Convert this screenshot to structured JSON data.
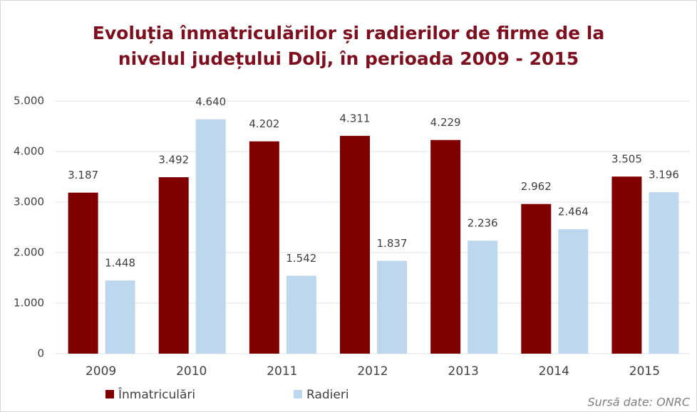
{
  "chart_data": {
    "type": "bar",
    "title": [
      "Evoluția înmatriculărilor și radierilor de firme de la",
      "nivelul județului Dolj, în perioada 2009 - 2015"
    ],
    "categories": [
      "2009",
      "2010",
      "2011",
      "2012",
      "2013",
      "2014",
      "2015"
    ],
    "series": [
      {
        "name": "Înmatriculări",
        "color": "#800000",
        "values": [
          3187,
          3492,
          4202,
          4311,
          4229,
          2962,
          3505
        ],
        "value_labels": [
          "3.187",
          "3.492",
          "4.202",
          "4.311",
          "4.229",
          "2.962",
          "3.505"
        ]
      },
      {
        "name": "Radieri",
        "color": "#bdd7ee",
        "values": [
          1448,
          4640,
          1542,
          1837,
          2236,
          2464,
          3196
        ],
        "value_labels": [
          "1.448",
          "4.640",
          "1.542",
          "1.837",
          "2.236",
          "2.464",
          "3.196"
        ]
      }
    ],
    "ylim": [
      0,
      5000
    ],
    "yticks": [
      0,
      {
        "value": 1000,
        "label": "1.000"
      },
      {
        "value": 2000,
        "label": "2.000"
      },
      {
        "value": 3000,
        "label": "3.000"
      },
      {
        "value": 4000,
        "label": "4.000"
      },
      {
        "value": 5000,
        "label": "5.000"
      }
    ],
    "grid": true,
    "legend": "bottom-left",
    "source": "Sursă date: ONRC"
  }
}
